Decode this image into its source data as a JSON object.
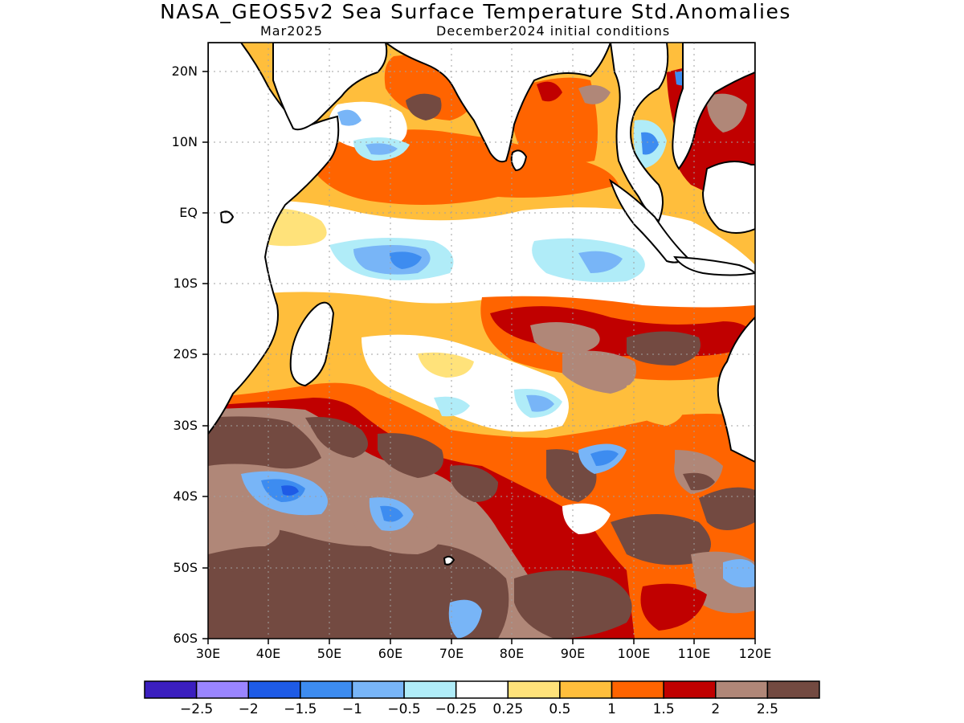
{
  "header": {
    "title": "NASA_GEOS5v2 Sea Surface Temperature Std.Anomalies",
    "valid_month": "Mar2025",
    "init_conditions": "December2024 initial conditions"
  },
  "map": {
    "lat_labels": [
      "20N",
      "10N",
      "EQ",
      "10S",
      "20S",
      "30S",
      "40S",
      "50S",
      "60S"
    ],
    "lon_labels": [
      "30E",
      "40E",
      "50E",
      "60E",
      "70E",
      "80E",
      "90E",
      "100E",
      "110E",
      "120E"
    ]
  },
  "colorbar": {
    "colors": [
      "#3b1fbf",
      "#9a85ff",
      "#1e5be6",
      "#3d8cf0",
      "#78b5f7",
      "#b0ecf8",
      "#ffffff",
      "#ffe27a",
      "#ffbe3c",
      "#ff6400",
      "#c00000",
      "#b08778",
      "#734a41"
    ],
    "labels": [
      "−2.5",
      "−2",
      "−1.5",
      "−1",
      "−0.5",
      "−0.25",
      "0.25",
      "0.5",
      "1",
      "1.5",
      "2",
      "2.5"
    ]
  }
}
